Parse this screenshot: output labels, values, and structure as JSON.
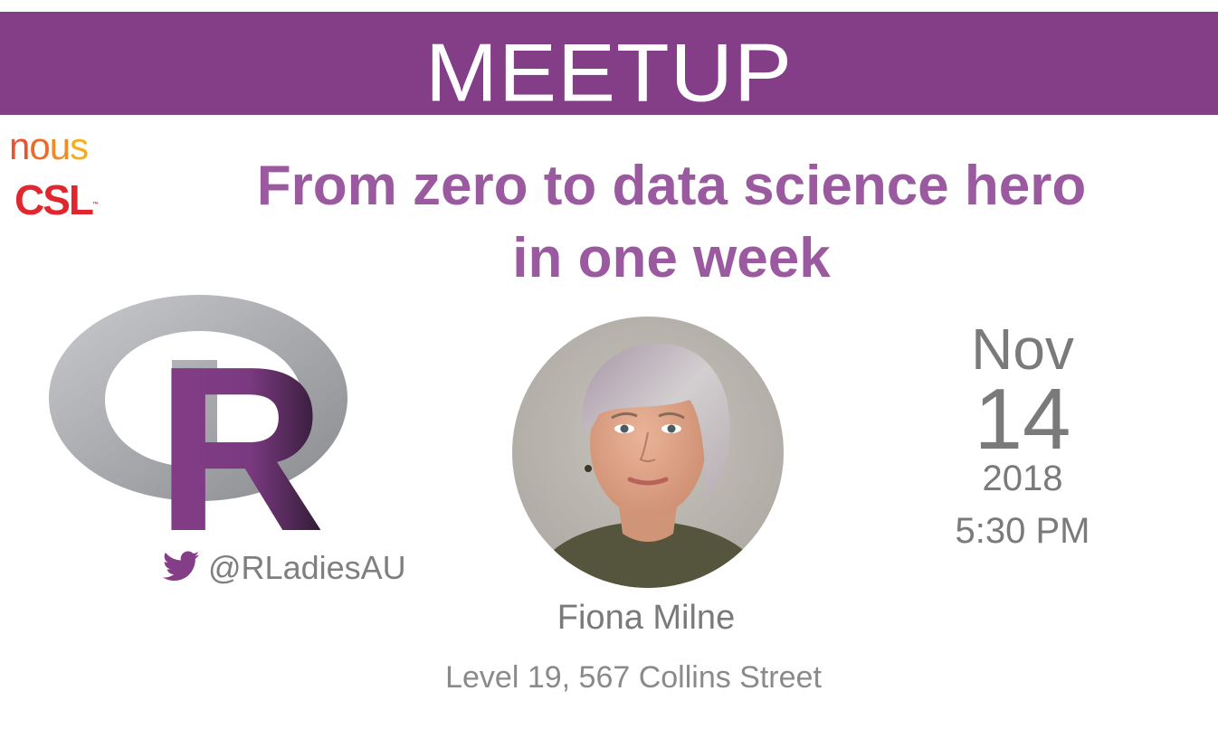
{
  "banner": {
    "title": "MEETUP",
    "color": "#843d87"
  },
  "sponsors": {
    "nous_letters": [
      "n",
      "o",
      "u",
      "s"
    ],
    "csl": "CSL",
    "csl_tm": "™"
  },
  "event": {
    "title_line1": "From zero to data science hero",
    "title_line2": "in one week",
    "title_color": "#9b5aa0"
  },
  "r_logo": {
    "letter": "R",
    "purple": "#843d87"
  },
  "social": {
    "icon": "twitter-icon",
    "handle": "@RLadiesAU"
  },
  "speaker": {
    "name": "Fiona Milne",
    "photo": "speaker-photo"
  },
  "venue": {
    "address": "Level 19, 567 Collins Street"
  },
  "date": {
    "month": "Nov",
    "day": "14",
    "year": "2018",
    "time": "5:30 PM"
  }
}
